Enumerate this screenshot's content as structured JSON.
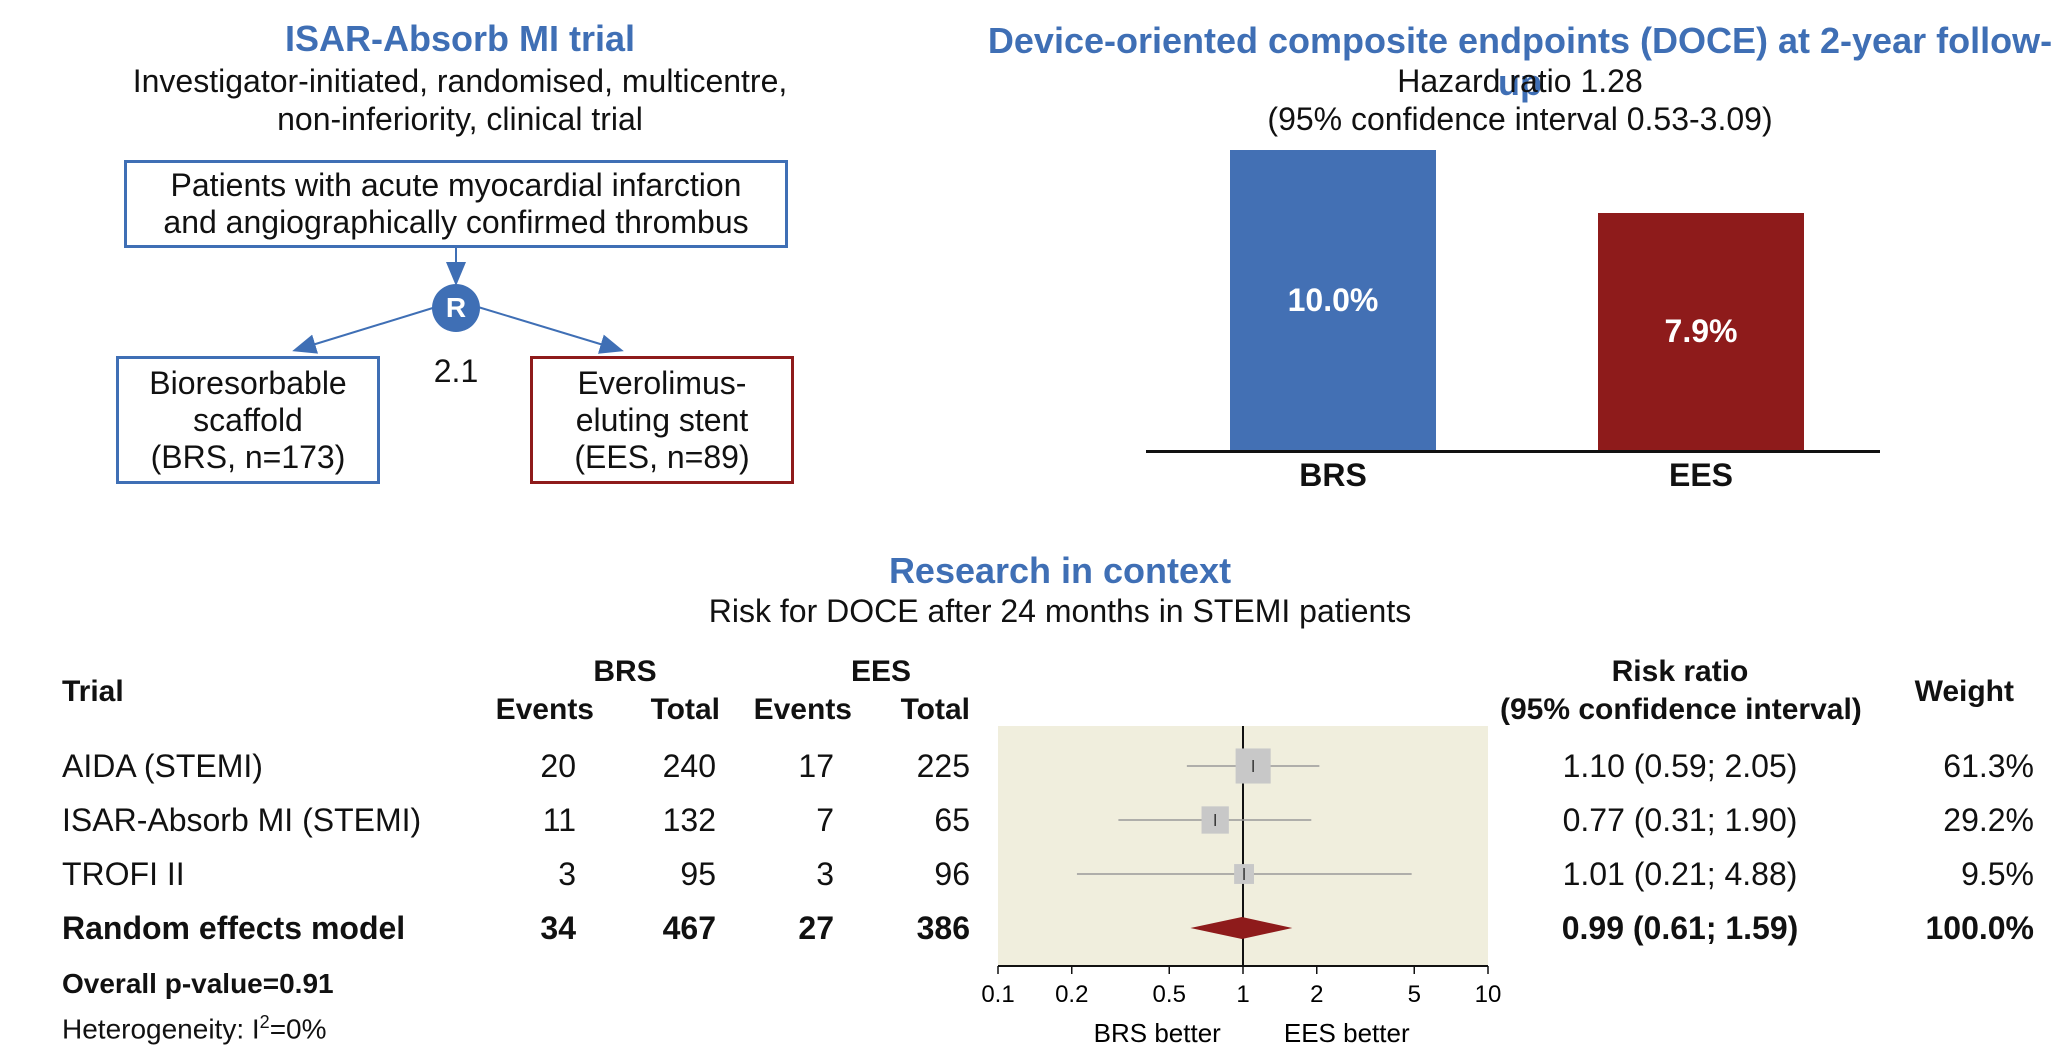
{
  "trial_panel": {
    "title": "ISAR-Absorb MI trial",
    "subtitle_line1": "Investigator-initiated, randomised, multicentre,",
    "subtitle_line2": "non-inferiority, clinical trial",
    "population_line1": "Patients with acute myocardial infarction",
    "population_line2": "and angiographically confirmed thrombus",
    "randomisation_label": "R",
    "ratio": "2.1",
    "arm_brs": {
      "line1": "Bioresorbable",
      "line2": "scaffold",
      "line3": "(BRS, n=173)"
    },
    "arm_ees": {
      "line1": "Everolimus-",
      "line2": "eluting stent",
      "line3": "(EES, n=89)"
    }
  },
  "doce_panel": {
    "title": "Device-oriented composite endpoints (DOCE) at 2-year follow-up",
    "hazard_ratio": "Hazard ratio 1.28",
    "ci": "(95% confidence interval 0.53-3.09)",
    "chart_data": {
      "type": "bar",
      "categories": [
        "BRS",
        "EES"
      ],
      "values": [
        10.0,
        7.9
      ],
      "value_labels": [
        "10.0%",
        "7.9%"
      ],
      "colors": [
        "#4370b4",
        "#8e1b1b"
      ],
      "ylim": [
        0,
        10.0
      ],
      "title": "Device-oriented composite endpoints (DOCE) at 2-year follow-up"
    }
  },
  "context_panel": {
    "title": "Research in context",
    "subtitle": "Risk for DOCE after 24 months in STEMI patients",
    "headers": {
      "trial": "Trial",
      "brs": "BRS",
      "ees": "EES",
      "events": "Events",
      "total": "Total",
      "rr_line1": "Risk ratio",
      "rr_line2": "(95% confidence interval)",
      "weight": "Weight"
    },
    "rows": [
      {
        "trial": "AIDA (STEMI)",
        "brs_events": "20",
        "brs_total": "240",
        "ees_events": "17",
        "ees_total": "225",
        "rr": "1.10 (0.59; 2.05)",
        "weight": "61.3%"
      },
      {
        "trial": "ISAR-Absorb MI (STEMI)",
        "brs_events": "11",
        "brs_total": "132",
        "ees_events": "7",
        "ees_total": "65",
        "rr": "0.77 (0.31; 1.90)",
        "weight": "29.2%"
      },
      {
        "trial": "TROFI II",
        "brs_events": "3",
        "brs_total": "95",
        "ees_events": "3",
        "ees_total": "96",
        "rr": "1.01 (0.21; 4.88)",
        "weight": "9.5%"
      }
    ],
    "summary": {
      "trial": "Random effects model",
      "brs_events": "34",
      "brs_total": "467",
      "ees_events": "27",
      "ees_total": "386",
      "rr": "0.99 (0.61; 1.59)",
      "weight": "100.0%"
    },
    "overall_p": "Overall p-value=0.91",
    "heterogeneity_prefix": "Heterogeneity: I",
    "heterogeneity_sup": "2",
    "heterogeneity_suffix": "=0%",
    "forest": {
      "ticks": [
        "0.1",
        "0.2",
        "0.5",
        "1",
        "2",
        "5",
        "10"
      ],
      "left_label": "BRS better",
      "right_label": "EES better",
      "chart_data": {
        "type": "forest",
        "scale": "log",
        "xlim": [
          0.1,
          10
        ],
        "studies": [
          {
            "name": "AIDA (STEMI)",
            "rr": 1.1,
            "lo": 0.59,
            "hi": 2.05,
            "weight": 61.3
          },
          {
            "name": "ISAR-Absorb MI (STEMI)",
            "rr": 0.77,
            "lo": 0.31,
            "hi": 1.9,
            "weight": 29.2
          },
          {
            "name": "TROFI II",
            "rr": 1.01,
            "lo": 0.21,
            "hi": 4.88,
            "weight": 9.5
          }
        ],
        "pooled": {
          "rr": 0.99,
          "lo": 0.61,
          "hi": 1.59
        },
        "background": "#f0eedd",
        "square_color": "#c8c8c8",
        "diamond_color": "#8e1b1b"
      }
    }
  }
}
